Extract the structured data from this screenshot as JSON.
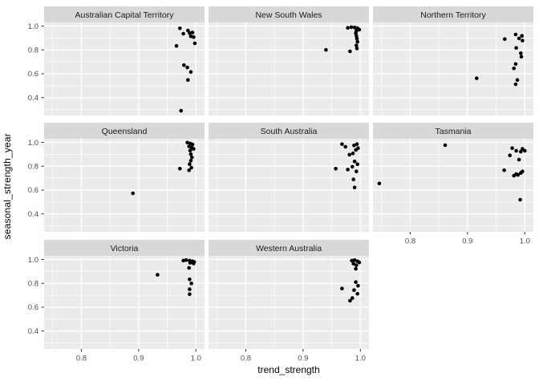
{
  "colors": {
    "background": "#ffffff",
    "panel_bg": "#ebebeb",
    "strip_bg": "#d8d8d8",
    "strip_text": "#1a1a1a",
    "grid": "#ffffff",
    "point": "#000000",
    "tick": "#333333",
    "axis_text": "#4d4d4d",
    "axis_title": "#000000"
  },
  "chart_data": {
    "type": "scatter",
    "title": "",
    "xlabel": "trend_strength",
    "ylabel": "seasonal_strength_year",
    "grid": true,
    "legend": false,
    "xlim": [
      0.735,
      1.015
    ],
    "ylim": [
      0.25,
      1.03
    ],
    "x_ticks": [
      0.8,
      0.9,
      1.0
    ],
    "y_ticks": [
      0.4,
      0.6,
      0.8,
      1.0
    ],
    "x_minor": [
      0.75,
      0.85,
      0.95
    ],
    "y_minor": [
      0.3,
      0.5,
      0.7,
      0.9
    ],
    "facet_layout": {
      "rows": 3,
      "cols": 3,
      "filled": 8
    },
    "facets": [
      {
        "name": "Australian Capital Territory",
        "points": [
          [
            0.972,
            0.981
          ],
          [
            0.978,
            0.936
          ],
          [
            0.986,
            0.963
          ],
          [
            0.989,
            0.941
          ],
          [
            0.994,
            0.945
          ],
          [
            0.991,
            0.914
          ],
          [
            0.996,
            0.907
          ],
          [
            0.998,
            0.855
          ],
          [
            0.966,
            0.833
          ],
          [
            0.979,
            0.672
          ],
          [
            0.985,
            0.653
          ],
          [
            0.991,
            0.615
          ],
          [
            0.986,
            0.548
          ],
          [
            0.974,
            0.29
          ]
        ]
      },
      {
        "name": "New South Wales",
        "points": [
          [
            0.978,
            0.985
          ],
          [
            0.984,
            0.99
          ],
          [
            0.99,
            0.988
          ],
          [
            0.995,
            0.982
          ],
          [
            0.998,
            0.97
          ],
          [
            0.993,
            0.96
          ],
          [
            0.992,
            0.94
          ],
          [
            0.993,
            0.918
          ],
          [
            0.994,
            0.895
          ],
          [
            0.995,
            0.868
          ],
          [
            0.993,
            0.838
          ],
          [
            0.994,
            0.812
          ],
          [
            0.982,
            0.788
          ],
          [
            0.94,
            0.8
          ]
        ]
      },
      {
        "name": "Northern Territory",
        "points": [
          [
            0.965,
            0.891
          ],
          [
            0.984,
            0.929
          ],
          [
            0.99,
            0.896
          ],
          [
            0.995,
            0.918
          ],
          [
            0.996,
            0.878
          ],
          [
            0.985,
            0.817
          ],
          [
            0.993,
            0.772
          ],
          [
            0.994,
            0.743
          ],
          [
            0.984,
            0.682
          ],
          [
            0.981,
            0.645
          ],
          [
            0.916,
            0.562
          ],
          [
            0.987,
            0.548
          ],
          [
            0.984,
            0.512
          ]
        ]
      },
      {
        "name": "Queensland",
        "points": [
          [
            0.985,
            0.998
          ],
          [
            0.99,
            0.99
          ],
          [
            0.994,
            0.982
          ],
          [
            0.988,
            0.966
          ],
          [
            0.993,
            0.955
          ],
          [
            0.996,
            0.945
          ],
          [
            0.99,
            0.931
          ],
          [
            0.991,
            0.9
          ],
          [
            0.993,
            0.873
          ],
          [
            0.991,
            0.846
          ],
          [
            0.989,
            0.817
          ],
          [
            0.992,
            0.788
          ],
          [
            0.988,
            0.766
          ],
          [
            0.972,
            0.779
          ],
          [
            0.89,
            0.573
          ]
        ]
      },
      {
        "name": "South Australia",
        "points": [
          [
            0.968,
            0.985
          ],
          [
            0.974,
            0.963
          ],
          [
            0.989,
            0.974
          ],
          [
            0.994,
            0.985
          ],
          [
            0.996,
            0.951
          ],
          [
            0.992,
            0.936
          ],
          [
            0.987,
            0.907
          ],
          [
            0.981,
            0.896
          ],
          [
            0.99,
            0.84
          ],
          [
            0.995,
            0.817
          ],
          [
            0.986,
            0.795
          ],
          [
            0.957,
            0.779
          ],
          [
            0.978,
            0.772
          ],
          [
            0.993,
            0.756
          ],
          [
            0.988,
            0.689
          ],
          [
            0.99,
            0.622
          ]
        ]
      },
      {
        "name": "Tasmania",
        "points": [
          [
            0.861,
            0.976
          ],
          [
            0.978,
            0.951
          ],
          [
            0.985,
            0.929
          ],
          [
            0.996,
            0.945
          ],
          [
            1.0,
            0.929
          ],
          [
            0.993,
            0.922
          ],
          [
            0.974,
            0.891
          ],
          [
            0.99,
            0.855
          ],
          [
            0.964,
            0.766
          ],
          [
            0.985,
            0.734
          ],
          [
            0.981,
            0.721
          ],
          [
            0.988,
            0.727
          ],
          [
            0.993,
            0.743
          ],
          [
            0.996,
            0.756
          ],
          [
            0.746,
            0.655
          ],
          [
            0.992,
            0.519
          ]
        ]
      },
      {
        "name": "Victoria",
        "points": [
          [
            0.978,
            0.99
          ],
          [
            0.983,
            0.995
          ],
          [
            0.989,
            0.99
          ],
          [
            0.994,
            0.985
          ],
          [
            0.997,
            0.979
          ],
          [
            0.99,
            0.972
          ],
          [
            0.996,
            0.966
          ],
          [
            0.988,
            0.929
          ],
          [
            0.989,
            0.833
          ],
          [
            0.992,
            0.799
          ],
          [
            0.989,
            0.75
          ],
          [
            0.989,
            0.709
          ],
          [
            0.933,
            0.871
          ]
        ]
      },
      {
        "name": "Western Australia",
        "points": [
          [
            0.985,
            0.99
          ],
          [
            0.99,
            0.995
          ],
          [
            0.995,
            0.985
          ],
          [
            0.998,
            0.975
          ],
          [
            0.988,
            0.965
          ],
          [
            0.993,
            0.952
          ],
          [
            0.992,
            0.922
          ],
          [
            0.992,
            0.81
          ],
          [
            0.996,
            0.779
          ],
          [
            0.989,
            0.743
          ],
          [
            0.995,
            0.712
          ],
          [
            0.986,
            0.676
          ],
          [
            0.982,
            0.654
          ],
          [
            0.968,
            0.756
          ]
        ]
      }
    ]
  }
}
